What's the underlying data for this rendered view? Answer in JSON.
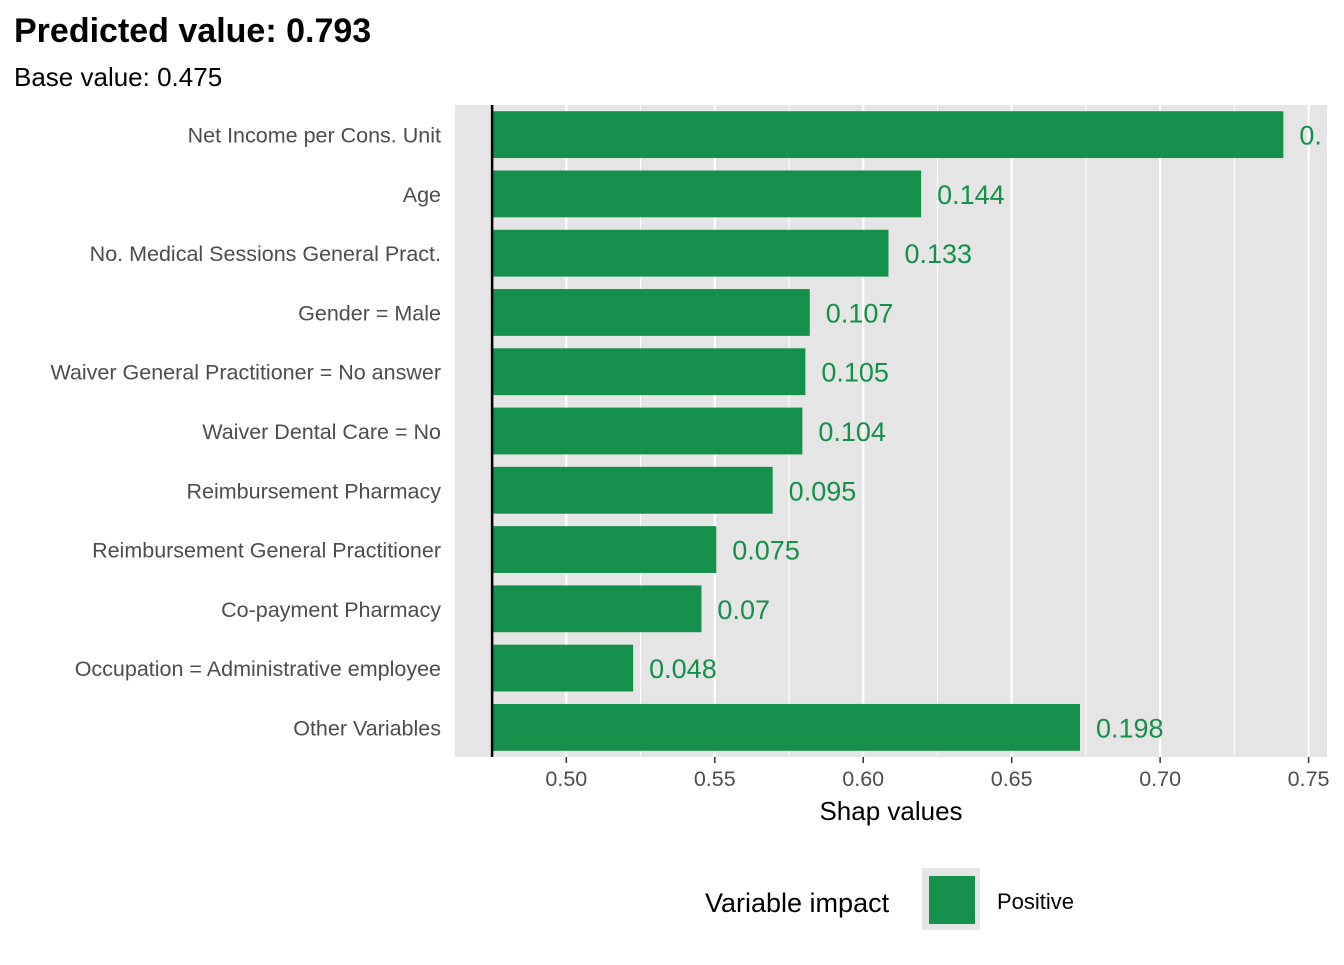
{
  "chart_data": {
    "type": "bar",
    "orientation": "horizontal",
    "title": "Predicted value: 0.793",
    "subtitle": "Base value: 0.475",
    "xlabel": "Shap values",
    "ylabel": "",
    "xlim": [
      0.4625,
      0.7562
    ],
    "base_value": 0.475,
    "x_ticks": [
      "0.50",
      "0.55",
      "0.60",
      "0.65",
      "0.70",
      "0.75"
    ],
    "x_tick_values": [
      0.5,
      0.55,
      0.6,
      0.65,
      0.7,
      0.75
    ],
    "categories": [
      "Net Income per Cons. Unit",
      "Age",
      "No. Medical Sessions General Pract.",
      "Gender = Male",
      "Waiver General Practitioner = No answer",
      "Waiver Dental Care = No",
      "Reimbursement Pharmacy",
      "Reimbursement General Practitioner",
      "Co-payment Pharmacy",
      "Occupation = Administrative employee",
      "Other Variables"
    ],
    "bar_end_values": [
      0.7415,
      0.6195,
      0.6085,
      0.582,
      0.5805,
      0.5795,
      0.5695,
      0.5505,
      0.5455,
      0.5225,
      0.673
    ],
    "data_labels": [
      "0.",
      "0.144",
      "0.133",
      "0.107",
      "0.105",
      "0.104",
      "0.095",
      "0.075",
      "0.07",
      "0.048",
      "0.198"
    ],
    "grid": true,
    "legend": {
      "title": "Variable impact",
      "position": "bottom",
      "items": [
        {
          "label": "Positive",
          "color": "#15904a"
        }
      ]
    },
    "colors": {
      "positive": "#15904a",
      "panel": "#e5e5e5",
      "grid": "#ffffff",
      "base_line": "#000000"
    }
  }
}
